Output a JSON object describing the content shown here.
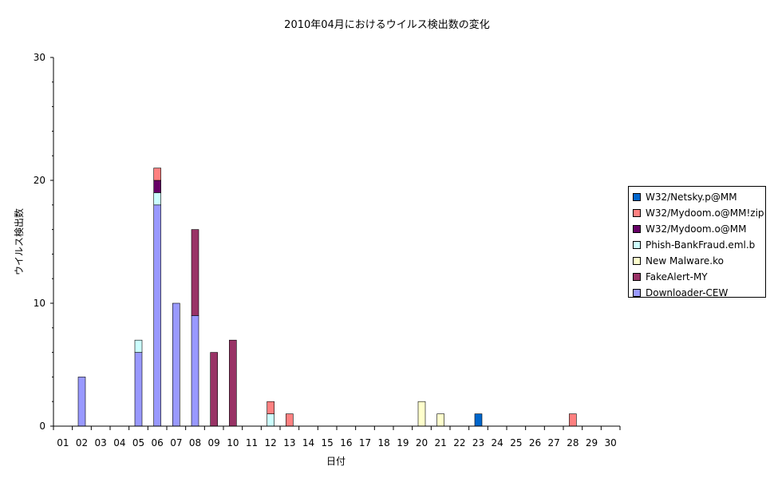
{
  "chart_data": {
    "type": "bar",
    "stacked": true,
    "title": "2010年04月におけるウイルス検出数の変化",
    "xlabel": "日付",
    "ylabel": "ウイルス検出数",
    "ylim": [
      0,
      30
    ],
    "yticks": [
      0,
      10,
      20,
      30
    ],
    "grid": false,
    "legend_position": "right",
    "categories": [
      "01",
      "02",
      "03",
      "04",
      "05",
      "06",
      "07",
      "08",
      "09",
      "10",
      "11",
      "12",
      "13",
      "14",
      "15",
      "16",
      "17",
      "18",
      "19",
      "20",
      "21",
      "22",
      "23",
      "24",
      "25",
      "26",
      "27",
      "28",
      "29",
      "30"
    ],
    "series": [
      {
        "name": "Downloader-CEW",
        "color": "#9999ff",
        "values": [
          0,
          4,
          0,
          0,
          6,
          18,
          10,
          9,
          0,
          0,
          0,
          0,
          0,
          0,
          0,
          0,
          0,
          0,
          0,
          0,
          0,
          0,
          0,
          0,
          0,
          0,
          0,
          0,
          0,
          0
        ]
      },
      {
        "name": "FakeAlert-MY",
        "color": "#993366",
        "values": [
          0,
          0,
          0,
          0,
          0,
          0,
          0,
          7,
          6,
          7,
          0,
          0,
          0,
          0,
          0,
          0,
          0,
          0,
          0,
          0,
          0,
          0,
          0,
          0,
          0,
          0,
          0,
          0,
          0,
          0
        ]
      },
      {
        "name": "New Malware.ko",
        "color": "#ffffcc",
        "values": [
          0,
          0,
          0,
          0,
          0,
          0,
          0,
          0,
          0,
          0,
          0,
          0,
          0,
          0,
          0,
          0,
          0,
          0,
          0,
          2,
          1,
          0,
          0,
          0,
          0,
          0,
          0,
          0,
          0,
          0
        ]
      },
      {
        "name": "Phish-BankFraud.eml.b",
        "color": "#ccffff",
        "values": [
          0,
          0,
          0,
          0,
          1,
          1,
          0,
          0,
          0,
          0,
          0,
          1,
          0,
          0,
          0,
          0,
          0,
          0,
          0,
          0,
          0,
          0,
          0,
          0,
          0,
          0,
          0,
          0,
          0,
          0
        ]
      },
      {
        "name": "W32/Mydoom.o@MM",
        "color": "#660066",
        "values": [
          0,
          0,
          0,
          0,
          0,
          1,
          0,
          0,
          0,
          0,
          0,
          0,
          0,
          0,
          0,
          0,
          0,
          0,
          0,
          0,
          0,
          0,
          0,
          0,
          0,
          0,
          0,
          0,
          0,
          0
        ]
      },
      {
        "name": "W32/Mydoom.o@MM!zip",
        "color": "#ff8080",
        "values": [
          0,
          0,
          0,
          0,
          0,
          1,
          0,
          0,
          0,
          0,
          0,
          1,
          1,
          0,
          0,
          0,
          0,
          0,
          0,
          0,
          0,
          0,
          0,
          0,
          0,
          0,
          0,
          1,
          0,
          0
        ]
      },
      {
        "name": "W32/Netsky.p@MM",
        "color": "#0066cc",
        "values": [
          0,
          0,
          0,
          0,
          0,
          0,
          0,
          0,
          0,
          0,
          0,
          0,
          0,
          0,
          0,
          0,
          0,
          0,
          0,
          0,
          0,
          0,
          1,
          0,
          0,
          0,
          0,
          0,
          0,
          0
        ]
      }
    ]
  }
}
